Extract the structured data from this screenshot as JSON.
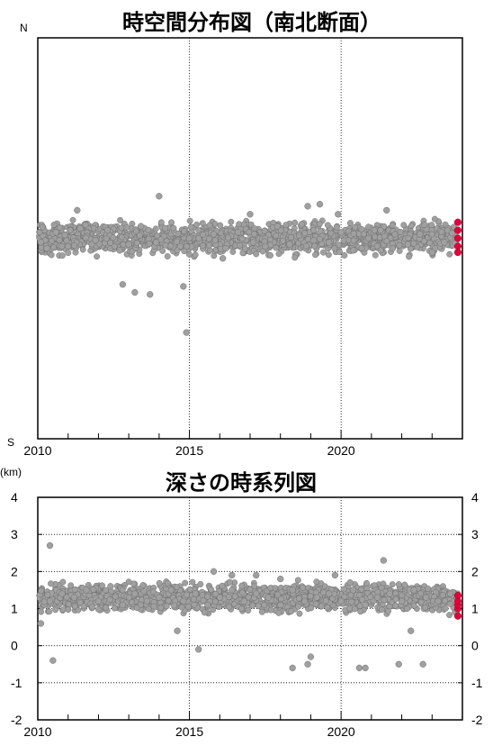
{
  "chart_data": [
    {
      "type": "scatter",
      "title": "時空間分布図（南北断面）",
      "ylabel_top": "N",
      "ylabel_bottom": "S",
      "xlabel": "",
      "xlim": [
        2010,
        2024
      ],
      "x_tick_labels": [
        "2010",
        "2015",
        "2020"
      ],
      "ylim": [
        -1,
        1
      ],
      "grid": "vertical dotted lines at 2015 and 2020",
      "series": [
        {
          "color": "#a0a0a0",
          "note_points": "dense band of earthquake events near center, scattered outliers",
          "x": [
            2010.1,
            2010.3,
            2010.6,
            2011.0,
            2011.4,
            2011.9,
            2012.3,
            2012.7,
            2013.0,
            2013.4,
            2013.9,
            2014.2,
            2014.7,
            2014.9,
            2015.3,
            2015.8,
            2016.2,
            2016.6,
            2017.1,
            2017.5,
            2017.9,
            2018.3,
            2018.7,
            2019.1,
            2019.6,
            2020.0,
            2020.4,
            2020.9,
            2021.3,
            2021.7,
            2022.2,
            2022.6,
            2023.0,
            2023.4,
            2012.8,
            2013.2,
            2013.7,
            2014.8,
            2016.1,
            2018.9,
            2019.3,
            2011.3,
            2014.0,
            2017.0,
            2019.9,
            2021.5
          ],
          "y": [
            0.02,
            0.05,
            -0.03,
            0.04,
            -0.05,
            0.01,
            -0.04,
            0.06,
            0.03,
            -0.06,
            0.02,
            -0.05,
            0.04,
            0.47,
            0.0,
            -0.02,
            0.05,
            -0.03,
            0.02,
            0.04,
            -0.06,
            0.03,
            -0.07,
            0.01,
            0.02,
            -0.03,
            0.06,
            0.0,
            -0.04,
            0.05,
            0.03,
            -0.02,
            0.07,
            0.02,
            0.23,
            0.27,
            0.28,
            0.24,
            0.1,
            -0.16,
            -0.17,
            -0.14,
            -0.21,
            -0.12,
            -0.12,
            -0.14
          ]
        },
        {
          "color": "#e8003a",
          "note_points": "most recent events",
          "x": [
            2023.85,
            2023.85,
            2023.85,
            2023.85,
            2023.85
          ],
          "y": [
            0.07,
            0.04,
            0.0,
            -0.04,
            -0.08
          ]
        }
      ]
    },
    {
      "type": "scatter",
      "title": "深さの時系列図",
      "ylabel": "(km)",
      "xlim": [
        2010,
        2024
      ],
      "x_tick_labels": [
        "2010",
        "2015",
        "2020"
      ],
      "ylim": [
        4,
        -2
      ],
      "y_tick_labels": [
        "-2",
        "-1",
        "0",
        "1",
        "2",
        "3",
        "4"
      ],
      "grid": "dotted horizontal at -1, 0, 1, 2, 3; dotted vertical at 2015 and 2020",
      "series": [
        {
          "color": "#a0a0a0",
          "x": [
            2010.1,
            2010.4,
            2010.8,
            2011.2,
            2011.6,
            2012.0,
            2012.4,
            2012.8,
            2013.2,
            2013.6,
            2014.0,
            2014.4,
            2014.8,
            2015.2,
            2015.6,
            2016.0,
            2016.4,
            2016.8,
            2017.2,
            2017.6,
            2018.0,
            2018.4,
            2018.8,
            2019.2,
            2019.6,
            2020.0,
            2020.4,
            2020.8,
            2021.2,
            2021.6,
            2022.0,
            2022.4,
            2022.8,
            2023.2,
            2023.6,
            2010.4,
            2014.6,
            2015.3,
            2018.4,
            2018.9,
            2019.0,
            2020.6,
            2020.8,
            2021.9,
            2022.3,
            2022.7,
            2010.5,
            2015.8,
            2017.2,
            2019.8,
            2021.4,
            2016.4,
            2018.0,
            2020.3
          ],
          "y": [
            0.6,
            1.2,
            1.4,
            1.3,
            1.5,
            1.2,
            1.6,
            1.1,
            1.4,
            1.2,
            1.3,
            1.5,
            1.2,
            1.4,
            1.1,
            1.3,
            1.5,
            1.2,
            1.4,
            1.3,
            1.1,
            1.5,
            1.2,
            1.3,
            1.4,
            1.2,
            1.5,
            1.1,
            1.3,
            1.4,
            1.2,
            1.5,
            1.3,
            1.2,
            1.4,
            2.7,
            0.4,
            -0.1,
            -0.6,
            -0.5,
            -0.3,
            -0.6,
            -0.6,
            -0.5,
            0.4,
            -0.5,
            -0.4,
            2.0,
            1.9,
            1.9,
            2.3,
            1.9,
            1.8,
            1.7
          ]
        },
        {
          "color": "#e8003a",
          "x": [
            2023.85,
            2023.85,
            2023.85,
            2023.85,
            2023.85
          ],
          "y": [
            0.8,
            1.0,
            1.1,
            1.2,
            1.35
          ]
        }
      ]
    }
  ]
}
